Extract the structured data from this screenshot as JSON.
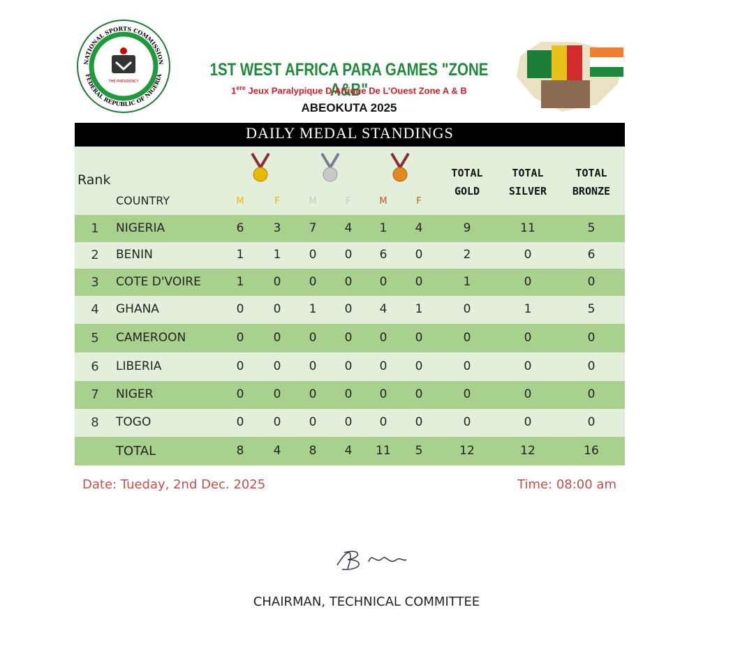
{
  "header": {
    "logo_top": "NATIONAL SPORTS COMMISSION",
    "logo_bottom": "FEDERAL REPUBLIC OF NIGERIA",
    "logo_center": "THE PRESIDENCY",
    "title": "1ST WEST AFRICA PARA GAMES \"ZONE A&B\"",
    "subtitle_ordinal": "1",
    "subtitle_sup": "ere",
    "subtitle_rest": "Jeux Paralypique D’Afrique De L’Ouest Zone A & B",
    "location": "ABEOKUTA 2025"
  },
  "table": {
    "title": "DAILY MEDAL STANDINGS",
    "headers": {
      "rank": "Rank",
      "country": "COUNTRY",
      "medal_sexes": [
        "M",
        "F",
        "M",
        "F",
        "M",
        "F"
      ],
      "totals": [
        "TOTAL GOLD",
        "TOTAL SILVER",
        "TOTAL BRONZE"
      ]
    },
    "rows": [
      [
        1,
        "NIGERIA",
        6,
        3,
        7,
        4,
        1,
        4,
        9,
        11,
        5
      ],
      [
        2,
        "BENIN",
        1,
        1,
        0,
        0,
        6,
        0,
        2,
        0,
        6
      ],
      [
        3,
        "COTE D'VOIRE",
        1,
        0,
        0,
        0,
        0,
        0,
        1,
        0,
        0
      ],
      [
        4,
        "GHANA",
        0,
        0,
        1,
        0,
        4,
        1,
        0,
        1,
        5
      ],
      [
        5,
        "CAMEROON",
        0,
        0,
        0,
        0,
        0,
        0,
        0,
        0,
        0
      ],
      [
        6,
        "LIBERIA",
        0,
        0,
        0,
        0,
        0,
        0,
        0,
        0,
        0
      ],
      [
        7,
        "NIGER",
        0,
        0,
        0,
        0,
        0,
        0,
        0,
        0,
        0
      ],
      [
        8,
        "TOGO",
        0,
        0,
        0,
        0,
        0,
        0,
        0,
        0,
        0
      ]
    ],
    "total": {
      "label": "TOTAL",
      "values": [
        8,
        4,
        8,
        4,
        11,
        5,
        12,
        12,
        16
      ]
    }
  },
  "footer": {
    "date": "Date: Tueday, 2nd Dec. 2025",
    "time": "Time: 08:00 am",
    "signatory": "CHAIRMAN, TECHNICAL COMMITTEE"
  }
}
